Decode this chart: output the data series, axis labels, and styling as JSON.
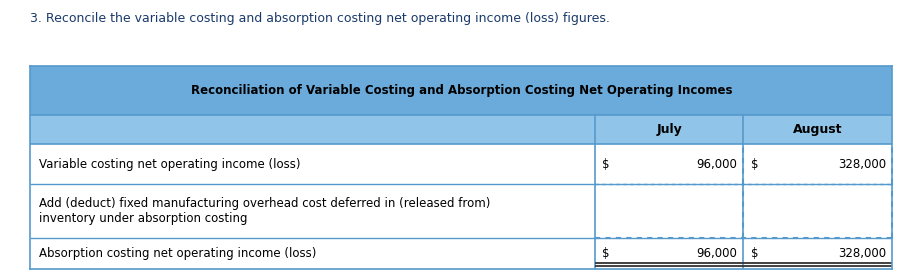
{
  "title": "Reconciliation of Variable Costing and Absorption Costing Net Operating Incomes",
  "subtitle": "3. Reconcile the variable costing and absorption costing net operating income (loss) figures.",
  "header_bg": "#6aabdb",
  "subheader_bg": "#90c4e8",
  "border_color": "#5599cc",
  "subtitle_color": "#1a3a6b",
  "rows": [
    {
      "label": "Variable costing net operating income (loss)",
      "july_prefix": "$",
      "july_value": "96,000",
      "aug_prefix": "$",
      "aug_value": "328,000"
    },
    {
      "label": "Add (deduct) fixed manufacturing overhead cost deferred in (released from)\ninventory under absorption costing",
      "july_prefix": "",
      "july_value": "",
      "aug_prefix": "",
      "aug_value": ""
    },
    {
      "label": "Absorption costing net operating income (loss)",
      "july_prefix": "$",
      "july_value": "96,000",
      "aug_prefix": "$",
      "aug_value": "328,000"
    }
  ]
}
